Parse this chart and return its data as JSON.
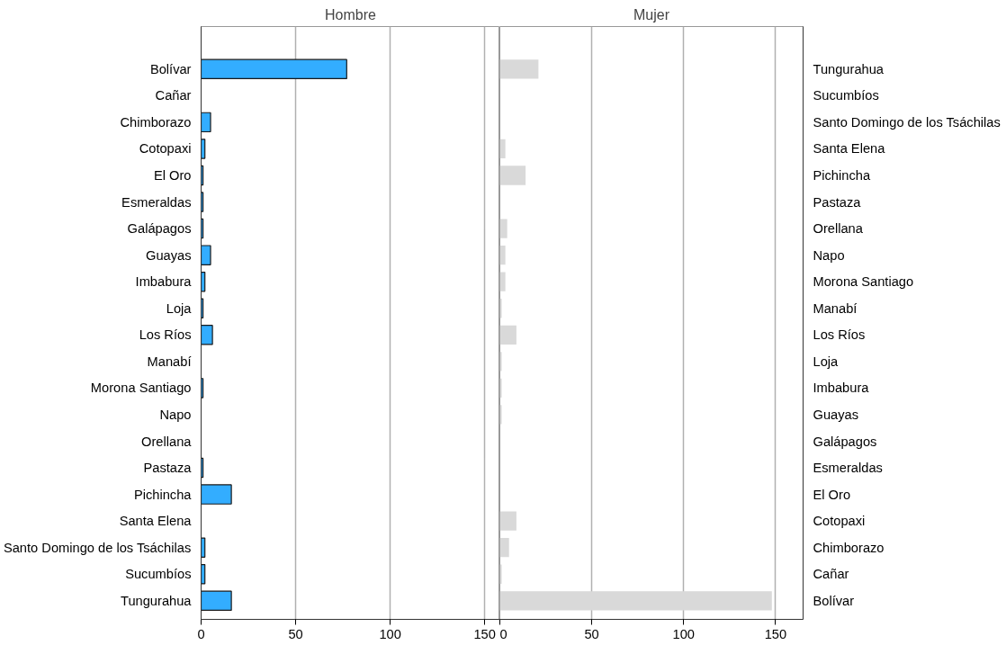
{
  "chart_data": [
    {
      "type": "bar",
      "orientation": "horizontal",
      "title": "Hombre",
      "categories": [
        "Bolívar",
        "Cañar",
        "Chimborazo",
        "Cotopaxi",
        "El Oro",
        "Esmeraldas",
        "Galápagos",
        "Guayas",
        "Imbabura",
        "Loja",
        "Los Ríos",
        "Manabí",
        "Morona Santiago",
        "Napo",
        "Orellana",
        "Pastaza",
        "Pichincha",
        "Santa Elena",
        "Santo Domingo de los Tsáchilas",
        "Sucumbíos",
        "Tungurahua"
      ],
      "series": [
        {
          "color": "#33adff",
          "values": [
            77,
            0,
            5,
            2,
            1,
            1,
            1,
            5,
            2,
            1,
            6,
            0,
            1,
            0,
            0,
            1,
            16,
            0,
            2,
            2,
            16
          ]
        }
      ],
      "xlim": [
        0,
        158
      ],
      "xticks": [
        0,
        50,
        100,
        150
      ],
      "grid": "x"
    },
    {
      "type": "bar",
      "orientation": "horizontal",
      "title": "Mujer",
      "categories": [
        "Tungurahua",
        "Sucumbíos",
        "Santo Domingo de los Tsáchilas",
        "Santa Elena",
        "Pichincha",
        "Pastaza",
        "Orellana",
        "Napo",
        "Morona Santiago",
        "Manabí",
        "Los Ríos",
        "Loja",
        "Imbabura",
        "Guayas",
        "Galápagos",
        "Esmeraldas",
        "El Oro",
        "Cotopaxi",
        "Chimborazo",
        "Cañar",
        "Bolívar"
      ],
      "series": [
        {
          "color": "#d9d9d9",
          "values": [
            21,
            0,
            0,
            3,
            14,
            0,
            4,
            3,
            3,
            1,
            9,
            1,
            1,
            1,
            0,
            0,
            0,
            9,
            5,
            1,
            148
          ]
        }
      ],
      "xlim": [
        0,
        165
      ],
      "xticks": [
        0,
        50,
        100,
        150
      ],
      "grid": "x"
    }
  ]
}
